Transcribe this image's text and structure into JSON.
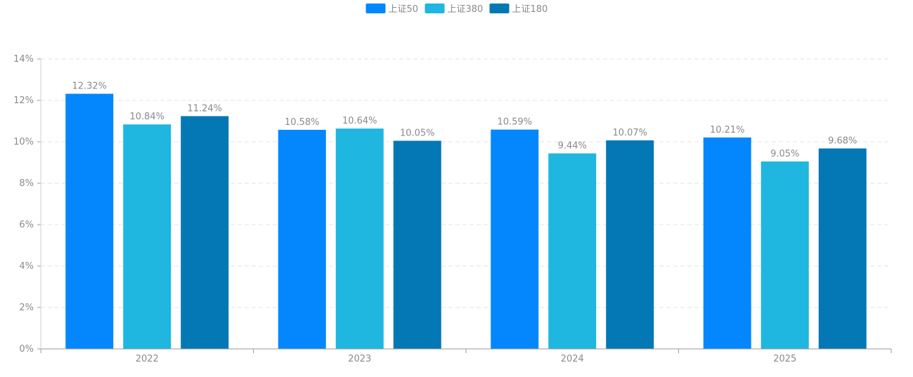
{
  "chart_data": {
    "type": "bar",
    "title": "",
    "xlabel": "",
    "ylabel": "",
    "categories": [
      "2022",
      "2023",
      "2024",
      "2025"
    ],
    "series": [
      {
        "name": "上证50",
        "color": "#0487FC",
        "values": [
          12.32,
          10.58,
          10.59,
          10.21
        ]
      },
      {
        "name": "上证380",
        "color": "#1FB6E0",
        "values": [
          10.84,
          10.64,
          9.44,
          9.05
        ]
      },
      {
        "name": "上证180",
        "color": "#0378B4",
        "values": [
          11.24,
          10.05,
          10.07,
          9.68
        ]
      }
    ],
    "value_suffix": "%",
    "ylim": [
      0,
      14
    ],
    "yticks": [
      0,
      2,
      4,
      6,
      8,
      10,
      12,
      14
    ],
    "ytick_labels": [
      "0%",
      "2%",
      "4%",
      "6%",
      "8%",
      "10%",
      "12%",
      "14%"
    ],
    "grid": true,
    "legend_position": "top-center",
    "colors": {
      "axis": "#9a9a9a",
      "grid": "#e3e3e3",
      "text": "#8a8a8a"
    }
  }
}
